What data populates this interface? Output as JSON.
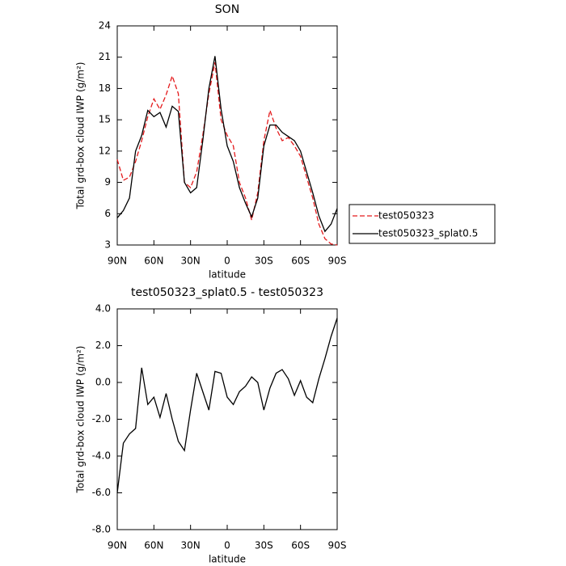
{
  "chart_data": [
    {
      "type": "line",
      "title": "SON",
      "x_label": "latitude",
      "y_label": "Total grd-box cloud IWP (g/m²)",
      "x": [
        90,
        85,
        80,
        75,
        70,
        65,
        60,
        55,
        50,
        45,
        40,
        35,
        30,
        25,
        20,
        15,
        10,
        5,
        0,
        -5,
        -10,
        -15,
        -20,
        -25,
        -30,
        -35,
        -40,
        -45,
        -50,
        -55,
        -60,
        -65,
        -70,
        -75,
        -80,
        -85,
        -90
      ],
      "xlim": [
        90,
        -90
      ],
      "xticks": [
        {
          "value": 90,
          "label": "90N"
        },
        {
          "value": 60,
          "label": "60N"
        },
        {
          "value": 30,
          "label": "30N"
        },
        0,
        {
          "value": -30,
          "label": "30S"
        },
        {
          "value": -60,
          "label": "60S"
        },
        {
          "value": -90,
          "label": "90S"
        }
      ],
      "ylim": [
        3,
        24
      ],
      "yticks": [
        3,
        6,
        9,
        12,
        15,
        18,
        21,
        24
      ],
      "legend": "right",
      "series": [
        {
          "name": "test050323",
          "color": "#e41a1c",
          "dash": true,
          "values": [
            11.2,
            9.2,
            9.5,
            11,
            13,
            15.3,
            17,
            16,
            17.4,
            19.2,
            17.5,
            9,
            8.5,
            10,
            13.5,
            17.5,
            20.5,
            15,
            13.5,
            12.5,
            9,
            7.5,
            5.4,
            8,
            13,
            15.9,
            14.2,
            13,
            13.3,
            12.5,
            11.5,
            9.5,
            7.5,
            5,
            3.6,
            3.1,
            3
          ]
        },
        {
          "name": "test050323_splat0.5",
          "color": "#000000",
          "dash": false,
          "values": [
            5.6,
            6.3,
            7.5,
            12,
            13.5,
            15.9,
            15.3,
            15.7,
            14.3,
            16.3,
            15.8,
            9,
            8,
            8.5,
            13,
            18,
            21.1,
            16,
            12.5,
            11,
            8.5,
            7,
            5.7,
            7.5,
            12.5,
            14.5,
            14.5,
            13.8,
            13.4,
            13,
            12,
            10,
            8,
            5.8,
            4.3,
            5,
            6.5
          ]
        }
      ]
    },
    {
      "type": "line",
      "title": "test050323_splat0.5 - test050323",
      "x_label": "latitude",
      "y_label": "Total grd-box cloud IWP (g/m²)",
      "x": [
        90,
        85,
        80,
        75,
        70,
        65,
        60,
        55,
        50,
        45,
        40,
        35,
        30,
        25,
        20,
        15,
        10,
        5,
        0,
        -5,
        -10,
        -15,
        -20,
        -25,
        -30,
        -35,
        -40,
        -45,
        -50,
        -55,
        -60,
        -65,
        -70,
        -75,
        -80,
        -85,
        -90
      ],
      "xlim": [
        90,
        -90
      ],
      "xticks": [
        {
          "value": 90,
          "label": "90N"
        },
        {
          "value": 60,
          "label": "60N"
        },
        {
          "value": 30,
          "label": "30N"
        },
        0,
        {
          "value": -30,
          "label": "30S"
        },
        {
          "value": -60,
          "label": "60S"
        },
        {
          "value": -90,
          "label": "90S"
        }
      ],
      "ylim": [
        -8,
        4
      ],
      "yticks": [
        {
          "value": -8,
          "label": "-8.0"
        },
        {
          "value": -6,
          "label": "-6.0"
        },
        {
          "value": -4,
          "label": "-4.0"
        },
        {
          "value": -2,
          "label": "-2.0"
        },
        {
          "value": 0,
          "label": "0.0"
        },
        {
          "value": 2,
          "label": "2.0"
        },
        {
          "value": 4,
          "label": "4.0"
        }
      ],
      "series": [
        {
          "color": "#000000",
          "dash": false,
          "values": [
            -6,
            -3.3,
            -2.8,
            -2.5,
            0.8,
            -1.2,
            -0.8,
            -1.9,
            -0.6,
            -2,
            -3.2,
            -3.7,
            -1.5,
            0.5,
            -0.5,
            -1.5,
            0.6,
            0.5,
            -0.8,
            -1.2,
            -0.5,
            -0.2,
            0.3,
            0,
            -1.5,
            -0.3,
            0.5,
            0.7,
            0.2,
            -0.7,
            0.1,
            -0.8,
            -1.1,
            0.2,
            1.3,
            2.5,
            3.5
          ]
        }
      ]
    }
  ]
}
